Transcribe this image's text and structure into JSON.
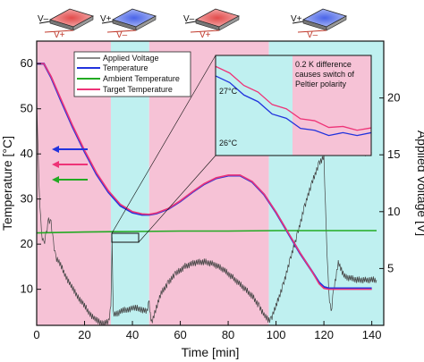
{
  "chart_data": {
    "type": "line",
    "xlabel": "Time [min]",
    "ylabel_left": "Temperature [°C]",
    "ylabel_right": "Applied Voltage [V]",
    "xlim": [
      0,
      145
    ],
    "ylim_left": [
      2,
      65
    ],
    "ylim_right": [
      0,
      25
    ],
    "x_ticks": [
      0,
      20,
      40,
      60,
      80,
      100,
      120,
      140
    ],
    "y_ticks_left": [
      10,
      20,
      30,
      40,
      50,
      60
    ],
    "y_ticks_right": [
      5,
      10,
      15,
      20
    ],
    "bands": [
      {
        "from": 0,
        "to": 31,
        "color": "#f6c2d6"
      },
      {
        "from": 31,
        "to": 47,
        "color": "#bff0f0"
      },
      {
        "from": 47,
        "to": 97,
        "color": "#f6c2d6"
      },
      {
        "from": 97,
        "to": 145,
        "color": "#bff0f0"
      }
    ],
    "series": [
      {
        "name": "Applied Voltage",
        "color": "#444444",
        "axis": "right",
        "x": [
          0,
          1,
          2,
          3,
          4,
          5,
          6,
          7,
          8,
          10,
          12,
          14,
          16,
          18,
          20,
          22,
          24,
          26,
          28,
          30,
          31,
          31.5,
          32,
          34,
          36,
          38,
          40,
          42,
          44,
          46,
          47,
          47.5,
          48,
          50,
          52,
          55,
          58,
          62,
          66,
          70,
          74,
          78,
          82,
          86,
          90,
          93,
          95,
          97,
          98,
          100,
          103,
          106,
          109,
          112,
          115,
          118,
          120,
          121,
          122,
          123,
          124,
          126,
          128,
          130,
          134,
          138,
          142
        ],
        "y": [
          20,
          12,
          8,
          7.2,
          8,
          9.3,
          9,
          7.2,
          6,
          5.3,
          4.4,
          3.6,
          2.9,
          2.3,
          1.7,
          1.1,
          0.6,
          0.3,
          0.2,
          0.3,
          1.5,
          7.5,
          1,
          1.1,
          1.3,
          1.4,
          1.5,
          1.5,
          1.4,
          1.2,
          2,
          0.9,
          0.2,
          1.6,
          2.8,
          3.8,
          4.5,
          5.2,
          5.5,
          5.6,
          5.4,
          4.9,
          4.2,
          3.4,
          2.6,
          1.7,
          0.9,
          0.4,
          0.6,
          1.7,
          3.6,
          5.8,
          8.1,
          10.5,
          12.5,
          14.3,
          14.8,
          8,
          3,
          1,
          3,
          5.5,
          4.5,
          4.2,
          4,
          4,
          4
        ]
      },
      {
        "name": "Temperature",
        "color": "#2233dd",
        "axis": "left",
        "x": [
          0,
          3,
          6,
          10,
          15,
          20,
          25,
          30,
          35,
          40,
          44,
          47,
          50,
          55,
          60,
          65,
          70,
          75,
          80,
          85,
          90,
          95,
          100,
          105,
          110,
          115,
          118,
          120,
          122,
          125,
          130,
          140
        ],
        "y": [
          60,
          60,
          57,
          52,
          46,
          40.5,
          35.5,
          31.5,
          28.5,
          27,
          26.5,
          26.5,
          26.8,
          27.8,
          29.5,
          31.5,
          33.3,
          34.6,
          35.2,
          35.2,
          33.8,
          31,
          27,
          22.5,
          18,
          14,
          11.5,
          10.5,
          10.2,
          10.2,
          10.2,
          10.2
        ]
      },
      {
        "name": "Ambient Temperature",
        "color": "#22aa22",
        "axis": "left",
        "x": [
          0,
          20,
          40,
          60,
          80,
          100,
          120,
          142
        ],
        "y": [
          22.5,
          22.7,
          22.8,
          22.9,
          22.9,
          23,
          23,
          23
        ]
      },
      {
        "name": "Target Temperature",
        "color": "#ee3377",
        "axis": "left",
        "x": [
          0,
          3,
          6,
          10,
          15,
          20,
          25,
          30,
          35,
          40,
          44,
          47,
          50,
          55,
          60,
          65,
          70,
          75,
          80,
          85,
          90,
          95,
          100,
          105,
          110,
          115,
          118,
          120,
          122,
          125,
          130,
          140
        ],
        "y": [
          60,
          60,
          57.2,
          52.3,
          46.3,
          40.8,
          35.8,
          31.8,
          28.8,
          27.2,
          26.7,
          26.6,
          26.9,
          27.9,
          29.6,
          31.6,
          33.4,
          34.7,
          35.3,
          35.3,
          33.9,
          31.1,
          27.1,
          22.6,
          18.1,
          14,
          11.2,
          10.2,
          10,
          10,
          10,
          10
        ]
      }
    ],
    "inset": {
      "annotation": [
        "0.2 K difference",
        "causes switch of",
        "Peltier polarity"
      ],
      "labels": [
        "27°C",
        "26°C"
      ],
      "temperature": [
        27.7,
        27.5,
        27.3,
        27.1,
        26.9,
        26.75,
        26.6,
        26.5,
        26.45,
        26.45,
        26.45,
        26.45
      ],
      "target": [
        27.9,
        27.7,
        27.5,
        27.3,
        27.1,
        26.95,
        26.8,
        26.7,
        26.62,
        26.58,
        26.56,
        26.55
      ]
    },
    "icons": [
      {
        "left": "V–",
        "right": "V+",
        "color": "#e24b4b"
      },
      {
        "left": "V+",
        "right": "V–",
        "color": "#4a64e8"
      },
      {
        "left": "V–",
        "right": "V+",
        "color": "#e24b4b"
      },
      {
        "left": "V+",
        "right": "V–",
        "color": "#4a64e8"
      }
    ]
  }
}
